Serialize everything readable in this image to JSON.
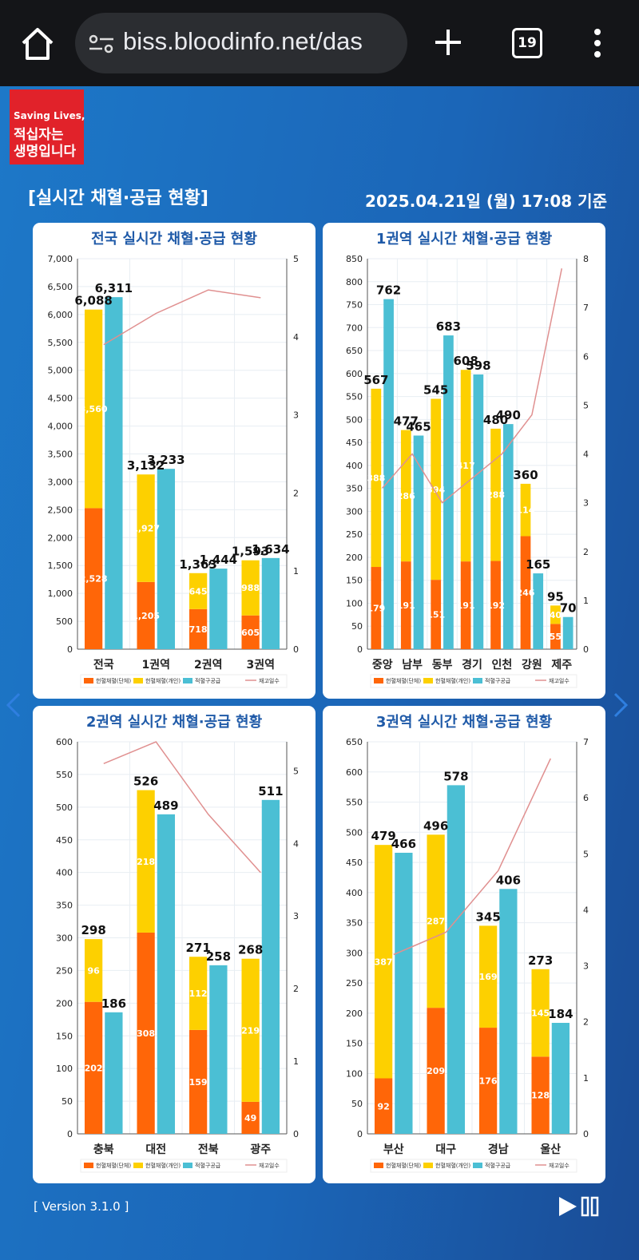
{
  "browser": {
    "url": "biss.bloodinfo.net/das",
    "tab_count": "19",
    "icons": [
      "home-icon",
      "site-settings-icon",
      "plus-icon",
      "tabs-icon",
      "more-icon"
    ]
  },
  "logo": {
    "line1": "Saving Lives,",
    "line2": "적십자는",
    "line3": "생명입니다"
  },
  "header": {
    "title": "[실시간 채혈·공급 현황]",
    "datetime": "2025.04.21일 (월) 17:08 기준"
  },
  "legend": {
    "group": "헌혈채혈(단체)",
    "personal": "헌혈채혈(개인)",
    "supply": "적혈구공급",
    "stock": "재고일수"
  },
  "colors": {
    "group": "#ff6608",
    "personal": "#fdd000",
    "supply": "#4bbfd4",
    "stock": "#e09090",
    "title": "#1f5aa8"
  },
  "footer": {
    "version": "[ Version 3.1.0 ]"
  },
  "chart_data": [
    {
      "type": "bar",
      "title": "전국 실시간 채혈·공급 현황",
      "categories": [
        "전국",
        "1권역",
        "2권역",
        "3권역"
      ],
      "group": [
        2528,
        1205,
        718,
        605
      ],
      "personal": [
        3560,
        1927,
        645,
        988
      ],
      "collection_total": [
        6088,
        3132,
        1363,
        1593
      ],
      "supply": [
        6311,
        3233,
        1444,
        1634
      ],
      "stock_days": [
        3.9,
        4.3,
        4.6,
        4.5
      ],
      "ylim": [
        0,
        7000
      ],
      "ystep": 500,
      "y2lim": [
        0,
        5
      ],
      "y2step": 1
    },
    {
      "type": "bar",
      "title": "1권역 실시간 채혈·공급 현황",
      "categories": [
        "중앙",
        "남부",
        "동부",
        "경기",
        "인천",
        "강원",
        "제주"
      ],
      "group": [
        179,
        191,
        151,
        191,
        192,
        246,
        55
      ],
      "personal": [
        388,
        286,
        394,
        417,
        288,
        114,
        40
      ],
      "collection_total": [
        567,
        477,
        545,
        608,
        480,
        360,
        95
      ],
      "supply": [
        762,
        465,
        683,
        598,
        490,
        165,
        70
      ],
      "stock_days": [
        3.3,
        4.0,
        3.0,
        3.5,
        4.0,
        4.8,
        7.8
      ],
      "ylim": [
        0,
        850
      ],
      "ystep": 50,
      "y2lim": [
        0,
        8
      ],
      "y2step": 1
    },
    {
      "type": "bar",
      "title": "2권역 실시간 채혈·공급 현황",
      "categories": [
        "충북",
        "대전",
        "전북",
        "광주"
      ],
      "group": [
        202,
        308,
        159,
        49
      ],
      "personal": [
        96,
        218,
        112,
        219
      ],
      "collection_total": [
        298,
        526,
        271,
        268
      ],
      "supply": [
        186,
        489,
        258,
        511
      ],
      "stock_days": [
        5.1,
        5.4,
        4.4,
        3.6
      ],
      "ylim": [
        0,
        600
      ],
      "ystep": 50,
      "y2lim": [
        0,
        5.4
      ],
      "y2step": 1
    },
    {
      "type": "bar",
      "title": "3권역 실시간 채혈·공급 현황",
      "categories": [
        "부산",
        "대구",
        "경남",
        "울산"
      ],
      "group": [
        92,
        209,
        176,
        128
      ],
      "personal": [
        387,
        287,
        169,
        145
      ],
      "collection_total": [
        479,
        496,
        345,
        273
      ],
      "supply": [
        466,
        578,
        406,
        184
      ],
      "stock_days": [
        3.2,
        3.6,
        4.7,
        6.7
      ],
      "ylim": [
        0,
        650
      ],
      "ystep": 50,
      "y2lim": [
        0,
        7
      ],
      "y2step": 1
    }
  ]
}
